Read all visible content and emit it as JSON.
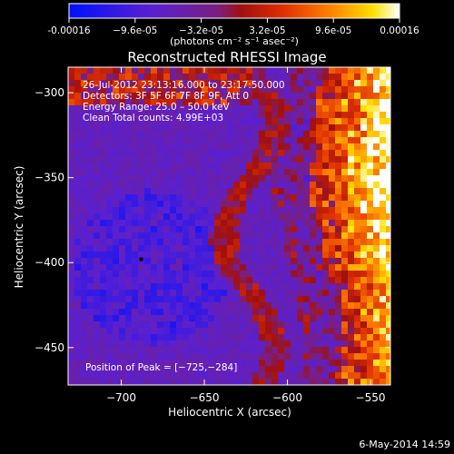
{
  "colorbar": {
    "tick_labels": [
      "-0.00016",
      "−9.6e-05",
      "−3.2e-05",
      "3.2e-05",
      "9.6e-05",
      "0.00016"
    ],
    "tick_values": [
      -0.00016,
      -9.6e-05,
      -3.2e-05,
      3.2e-05,
      9.6e-05,
      0.00016
    ],
    "range": [
      -0.00016,
      0.00016
    ],
    "unit_label": "(photons cm⁻² s⁻¹ asec⁻²)",
    "colors": [
      "#0010ff",
      "#5a20d0",
      "#7a1f80",
      "#a01010",
      "#e03000",
      "#ff8800",
      "#ffe000",
      "#ffffff"
    ]
  },
  "chart_data": {
    "type": "heatmap",
    "title": "Reconstructed RHESSI Image",
    "xlabel": "Heliocentric X (arcsec)",
    "ylabel": "Heliocentric Y (arcsec)",
    "xlim": [
      -732,
      -538
    ],
    "ylim": [
      -472,
      -285
    ],
    "x_ticks": [
      -700,
      -650,
      -600,
      -550
    ],
    "y_ticks": [
      -300,
      -350,
      -400,
      -450
    ],
    "x_tick_labels": [
      "−700",
      "−650",
      "−600",
      "−550"
    ],
    "y_tick_labels": [
      "−300",
      "−350",
      "−400",
      "−450"
    ],
    "annotations": [
      "26-Jul-2012 23:13:16.000 to 23:17:50.000",
      "Detectors: 3F 5F 6F 7F 8F 9F, Att 0",
      "Energy Range: 25.0 – 50.0 keV",
      "Clean     Total counts: 4.99E+03"
    ],
    "peak_label": "Position of Peak = [−725,−284]",
    "peak_position": [
      -725,
      -284
    ],
    "min_marker": [
      -688,
      -398
    ],
    "grid": false
  },
  "footer": {
    "timestamp": "6-May-2014 14:59"
  }
}
